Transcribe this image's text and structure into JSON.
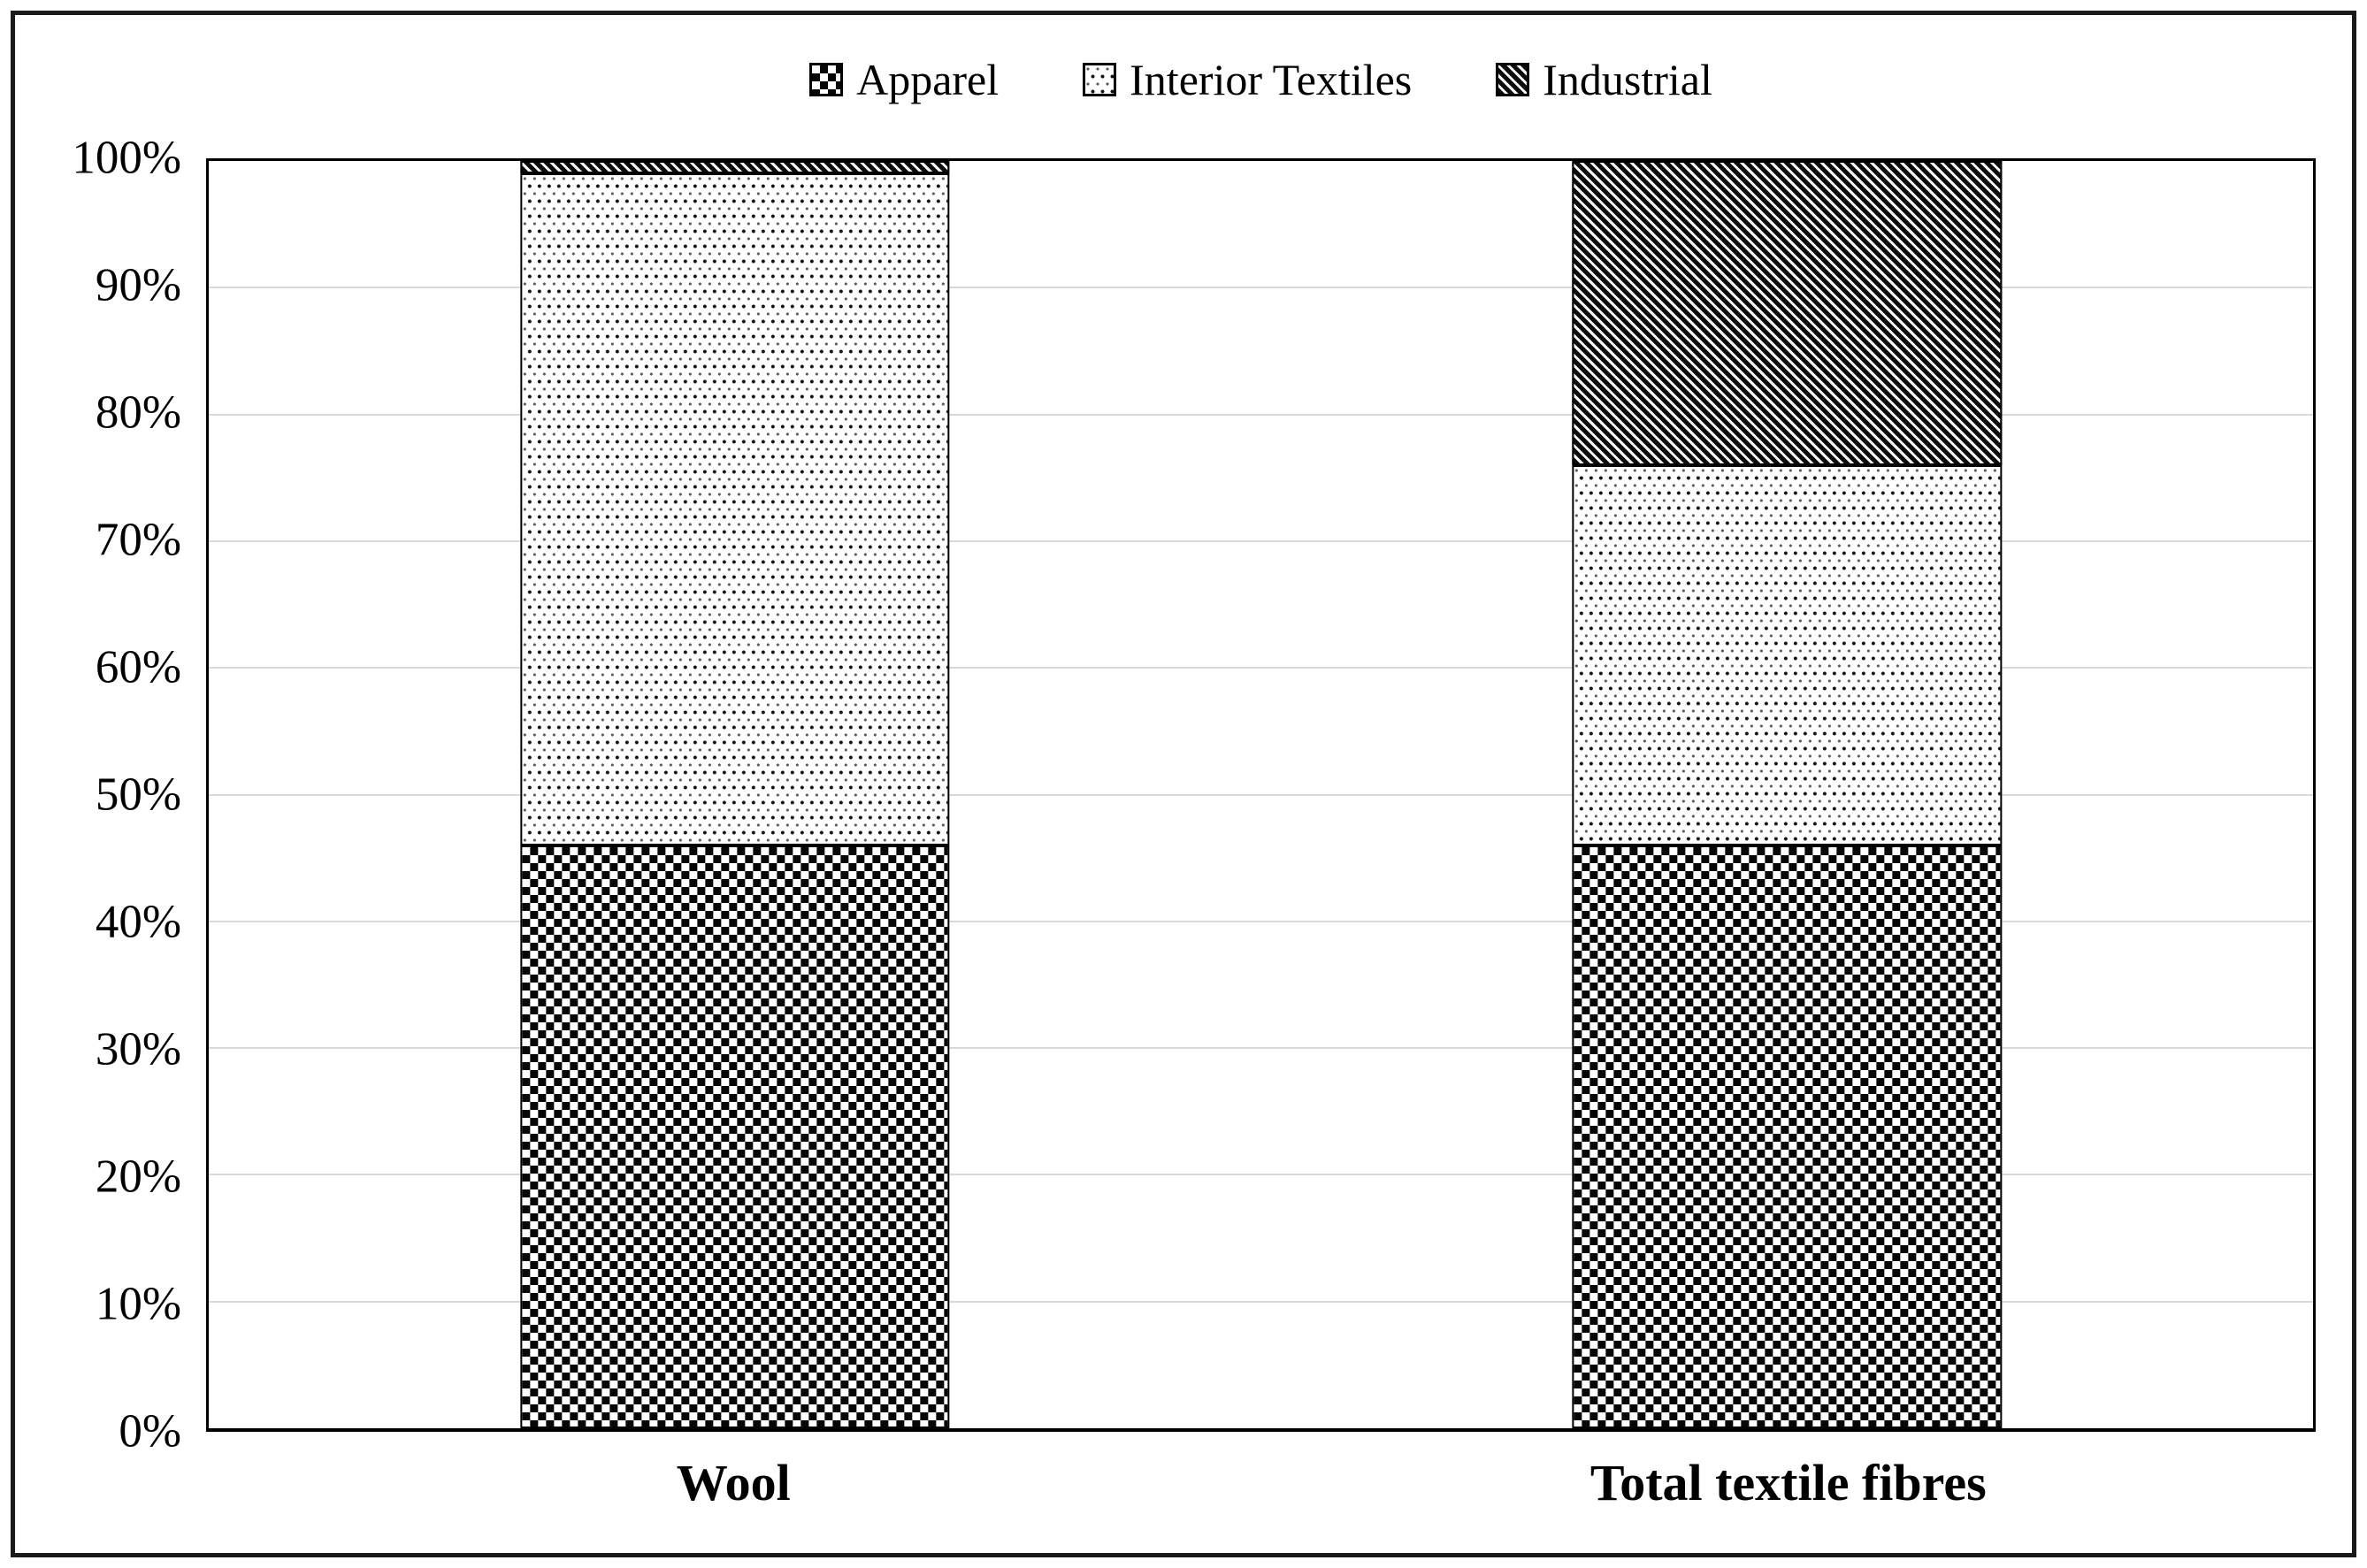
{
  "window": {
    "background": "#ffffff",
    "border_color": "#1a1a1a"
  },
  "chart_data": {
    "type": "bar",
    "variant": "stacked-100-percent",
    "title": "",
    "categories": [
      "Wool",
      "Total textile fibres"
    ],
    "series": [
      {
        "name": "Apparel",
        "pattern": "checkerboard",
        "values": [
          46,
          46
        ]
      },
      {
        "name": "Interior Textiles",
        "pattern": "dots",
        "values": [
          53,
          30
        ]
      },
      {
        "name": "Industrial",
        "pattern": "diagonal-hatch",
        "values": [
          1,
          24
        ]
      }
    ],
    "xlabel": "",
    "ylabel": "",
    "ylim": [
      0,
      100
    ],
    "yticks": [
      0,
      10,
      20,
      30,
      40,
      50,
      60,
      70,
      80,
      90,
      100
    ],
    "ytick_format": "{v}%",
    "grid": "horizontal",
    "gridline_color": "#d9d9d9",
    "axis_color": "#000000",
    "pattern_foreground": "#0d0d0d",
    "pattern_background": "#ffffff",
    "legend_position": "top-center",
    "bar_centers_percent": [
      25,
      75
    ],
    "bar_width_percent": 20.4
  }
}
